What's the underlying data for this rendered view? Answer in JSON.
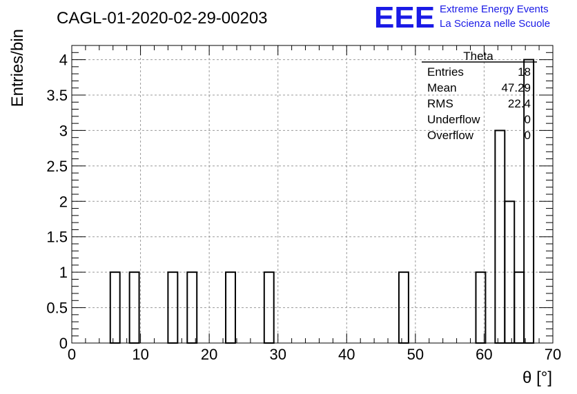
{
  "chart_data": {
    "type": "bar",
    "title": "CAGL-01-2020-02-29-00203",
    "xlabel": "θ [°]",
    "ylabel": "Entries/bin",
    "xlim": [
      0,
      70
    ],
    "ylim": [
      0,
      4.2
    ],
    "grid": true,
    "bin_width": 1.4,
    "x_ticks": [
      "0",
      "10",
      "20",
      "30",
      "40",
      "50",
      "60",
      "70"
    ],
    "y_ticks": [
      "0",
      "0.5",
      "1",
      "1.5",
      "2",
      "2.5",
      "3",
      "3.5",
      "4"
    ],
    "bins": [
      {
        "x": 5.6,
        "value": 1
      },
      {
        "x": 8.4,
        "value": 1
      },
      {
        "x": 14.0,
        "value": 1
      },
      {
        "x": 16.8,
        "value": 1
      },
      {
        "x": 22.4,
        "value": 1
      },
      {
        "x": 28.0,
        "value": 1
      },
      {
        "x": 47.6,
        "value": 1
      },
      {
        "x": 58.8,
        "value": 1
      },
      {
        "x": 61.6,
        "value": 3
      },
      {
        "x": 63.0,
        "value": 2
      },
      {
        "x": 64.4,
        "value": 1
      },
      {
        "x": 65.8,
        "value": 4
      }
    ]
  },
  "stats_box": {
    "title": "Theta",
    "rows": [
      {
        "label": "Entries",
        "value": "18"
      },
      {
        "label": "Mean",
        "value": "47.29"
      },
      {
        "label": "RMS",
        "value": "22.4"
      },
      {
        "label": "Underflow",
        "value": "0"
      },
      {
        "label": "Overflow",
        "value": "0"
      }
    ]
  },
  "logo": {
    "text": "EEE",
    "line1": "Extreme Energy Events",
    "line2": "La Scienza nelle Scuole",
    "color": "#1a1ae6"
  }
}
